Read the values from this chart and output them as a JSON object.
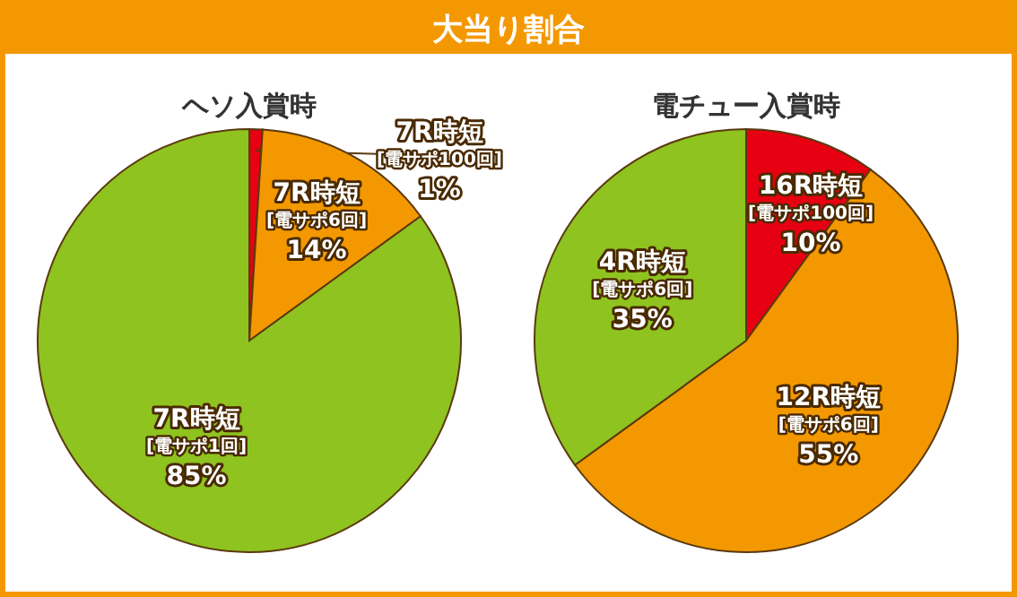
{
  "chart_data": [
    {
      "type": "other",
      "title": "大当り割合"
    },
    {
      "type": "pie",
      "title": "ヘソ入賞時",
      "categories": [
        "7R時短\n[電サポ100回]",
        "7R時短\n[電サポ6回]",
        "7R時短\n[電サポ1回]"
      ],
      "values": [
        1,
        14,
        85
      ],
      "value_labels": [
        "1%",
        "14%",
        "85%"
      ],
      "colors": [
        "#e60012",
        "#f39800",
        "#8fc31f"
      ]
    },
    {
      "type": "pie",
      "title": "電チュー入賞時",
      "categories": [
        "16R時短\n[電サポ100回]",
        "12R時短\n[電サポ6回]",
        "4R時短\n[電サポ6回]"
      ],
      "values": [
        10,
        55,
        35
      ],
      "value_labels": [
        "10%",
        "55%",
        "35%"
      ],
      "colors": [
        "#e60012",
        "#f39800",
        "#8fc31f"
      ]
    }
  ]
}
